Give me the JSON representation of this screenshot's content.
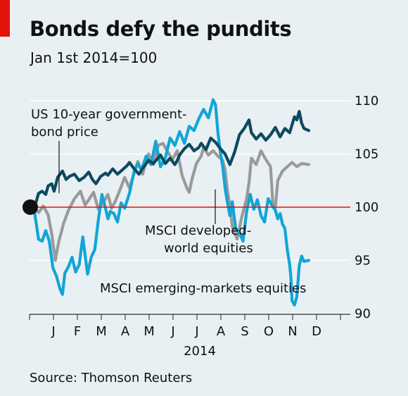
{
  "header": {
    "title": "Bonds defy the pundits",
    "subtitle": "Jan 1st 2014=100"
  },
  "footer": {
    "source": "Source: Thomson Reuters"
  },
  "colors": {
    "accent_red": "#e3120b",
    "background": "#e9f0f4",
    "bond": "#0d4a5e",
    "developed": "#9a9a9a",
    "emerging": "#12a5d6",
    "baseline": "#e3120b",
    "marker": "#111111"
  },
  "chart_data": {
    "type": "line",
    "title": "Bonds defy the pundits",
    "subtitle": "Jan 1st 2014=100",
    "xlabel": "2014",
    "ylabel": "",
    "x_ticks": [
      "J",
      "F",
      "M",
      "A",
      "M",
      "J",
      "J",
      "A",
      "S",
      "O",
      "N",
      "D"
    ],
    "y_ticks": [
      90,
      95,
      100,
      105,
      110
    ],
    "ylim": [
      90,
      110.5
    ],
    "xlim": [
      0,
      12
    ],
    "baseline": 100,
    "grid": true,
    "legend": "annotations",
    "start_marker": {
      "x": 0,
      "y": 100
    },
    "series": [
      {
        "name": "US 10-year government-bond price",
        "label_lines": [
          "US 10-year government-",
          "bond price"
        ],
        "x": [
          0,
          0.1,
          0.2,
          0.35,
          0.5,
          0.6,
          0.75,
          0.85,
          1.0,
          1.2,
          1.35,
          1.5,
          1.7,
          1.9,
          2.1,
          2.3,
          2.45,
          2.6,
          2.8,
          3.0,
          3.1,
          3.3,
          3.5,
          3.7,
          3.9,
          4.0,
          4.2,
          4.4,
          4.6,
          4.8,
          5.0,
          5.3,
          5.5,
          5.7,
          5.9,
          6.0,
          6.1,
          6.3,
          6.5,
          6.7,
          6.9,
          7.0,
          7.2,
          7.4,
          7.6,
          7.8,
          8.0,
          8.2,
          8.4,
          8.6,
          8.8,
          9.0,
          9.1,
          9.3,
          9.5,
          9.7,
          9.9,
          10.1,
          10.3,
          10.5,
          10.7,
          10.9,
          11.0,
          11.1,
          11.2,
          11.3,
          11.5
        ],
        "values": [
          100,
          100.5,
          101.3,
          101.5,
          101.2,
          102.0,
          102.2,
          101.5,
          102.8,
          103.4,
          102.6,
          102.9,
          103.1,
          102.5,
          102.8,
          103.3,
          102.6,
          102.2,
          102.9,
          103.2,
          103.0,
          103.6,
          103.1,
          103.5,
          103.9,
          104.2,
          103.6,
          103.1,
          103.8,
          104.4,
          104.1,
          104.9,
          104.1,
          104.6,
          104.0,
          104.4,
          104.9,
          105.5,
          105.9,
          105.3,
          105.6,
          106.0,
          105.4,
          106.5,
          106.1,
          105.5,
          105.0,
          104.0,
          105.2,
          106.8,
          107.4,
          108.2,
          107.0,
          106.4,
          106.9,
          106.3,
          106.8,
          107.5,
          106.6,
          107.4,
          107.0,
          108.5,
          108.2,
          109.0,
          107.9,
          107.4,
          107.2
        ]
      },
      {
        "name": "MSCI developed-world equities",
        "label_lines": [
          "MSCI developed-",
          "world equities"
        ],
        "x": [
          0,
          0.2,
          0.4,
          0.6,
          0.75,
          0.9,
          1.05,
          1.25,
          1.45,
          1.7,
          1.95,
          2.15,
          2.3,
          2.5,
          2.7,
          2.9,
          3.1,
          3.25,
          3.4,
          3.6,
          3.8,
          4.0,
          4.2,
          4.35,
          4.55,
          4.8,
          5.0,
          5.2,
          5.4,
          5.6,
          5.8,
          6.0,
          6.2,
          6.4,
          6.5,
          6.6,
          6.8,
          7.0,
          7.1,
          7.3,
          7.5,
          7.7,
          7.9,
          8.0,
          8.1,
          8.2,
          8.3,
          8.5,
          8.7,
          8.9,
          9.0,
          9.1,
          9.3,
          9.5,
          9.7,
          9.9,
          10.0,
          10.1,
          10.2,
          10.4,
          10.6,
          10.8,
          11.0,
          11.2,
          11.5
        ],
        "values": [
          100,
          99.5,
          100.1,
          99.3,
          97.5,
          95.0,
          96.8,
          98.5,
          99.7,
          100.8,
          101.5,
          100.2,
          100.7,
          101.4,
          99.8,
          100.4,
          101.2,
          99.9,
          100.5,
          101.6,
          102.8,
          101.8,
          103.2,
          104.3,
          103.1,
          105.0,
          104.0,
          105.8,
          106.0,
          105.2,
          104.5,
          105.3,
          103.0,
          101.8,
          101.4,
          102.5,
          104.1,
          104.8,
          105.6,
          104.9,
          105.3,
          104.8,
          104.4,
          103.5,
          101.5,
          100.1,
          98.2,
          97.0,
          99.1,
          100.8,
          102.3,
          104.6,
          104.0,
          105.3,
          104.5,
          103.8,
          100.2,
          99.9,
          102.5,
          103.4,
          103.8,
          104.2,
          103.8,
          104.1,
          104.0
        ]
      },
      {
        "name": "MSCI emerging-markets equities",
        "label_lines": [
          "MSCI emerging-markets equities"
        ],
        "x": [
          0,
          0.1,
          0.2,
          0.35,
          0.5,
          0.65,
          0.8,
          0.95,
          1.1,
          1.2,
          1.3,
          1.45,
          1.6,
          1.75,
          1.9,
          2.05,
          2.25,
          2.4,
          2.55,
          2.7,
          2.85,
          3.0,
          3.1,
          3.2,
          3.35,
          3.5,
          3.65,
          3.8,
          4.0,
          4.2,
          4.35,
          4.5,
          4.7,
          4.9,
          5.1,
          5.3,
          5.5,
          5.7,
          5.9,
          6.1,
          6.3,
          6.5,
          6.7,
          6.9,
          7.1,
          7.3,
          7.5,
          7.6,
          7.7,
          7.8,
          7.9,
          8.0,
          8.1,
          8.2,
          8.3,
          8.45,
          8.6,
          8.75,
          8.9,
          9.05,
          9.2,
          9.35,
          9.5,
          9.65,
          9.8,
          9.95,
          10.1,
          10.2,
          10.3,
          10.4,
          10.5,
          10.6,
          10.7,
          10.75,
          10.8,
          10.9,
          11.0,
          11.1,
          11.2,
          11.3,
          11.5
        ],
        "values": [
          100,
          98.5,
          97.0,
          96.8,
          97.8,
          96.8,
          94.3,
          93.5,
          92.3,
          91.8,
          93.8,
          94.4,
          95.3,
          93.9,
          94.6,
          97.2,
          93.7,
          95.3,
          96.0,
          98.8,
          101.2,
          99.9,
          98.9,
          99.6,
          99.4,
          98.6,
          100.4,
          99.9,
          101.3,
          103.4,
          104.1,
          103.5,
          104.8,
          104.0,
          106.2,
          103.8,
          104.6,
          106.5,
          105.8,
          107.1,
          106.0,
          107.6,
          107.2,
          108.3,
          109.2,
          108.4,
          110.1,
          109.6,
          107.0,
          105.2,
          103.8,
          101.8,
          100.4,
          99.2,
          100.5,
          97.9,
          97.6,
          96.8,
          99.6,
          101.2,
          99.8,
          100.7,
          99.2,
          98.6,
          100.8,
          100.2,
          99.7,
          98.9,
          99.4,
          98.4,
          98.0,
          96.0,
          94.6,
          93.4,
          91.2,
          90.8,
          91.6,
          94.5,
          95.4,
          94.9,
          95.0
        ]
      }
    ],
    "annotations": [
      {
        "text": "US 10-year government-bond price",
        "target_series": 0
      },
      {
        "text": "MSCI developed-world equities",
        "target_series": 1
      },
      {
        "text": "MSCI emerging-markets equities",
        "target_series": 2
      }
    ]
  }
}
